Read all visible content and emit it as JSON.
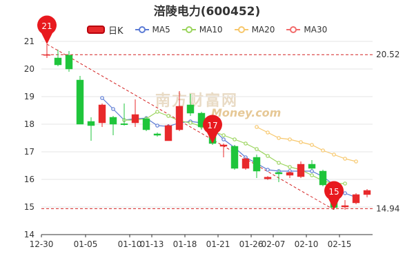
{
  "chart_data": {
    "type": "candlestick",
    "title": "涪陵电力(600452)",
    "legend": [
      "日K",
      "MA5",
      "MA10",
      "MA20",
      "MA30"
    ],
    "ylim": [
      14,
      21
    ],
    "yticks": [
      14,
      15,
      16,
      17,
      18,
      19,
      20,
      21
    ],
    "xticks": [
      "12-30",
      "01-05",
      "01-10",
      "01-13",
      "01-18",
      "01-21",
      "01-26",
      "02-07",
      "02-10",
      "02-15"
    ],
    "candles": [
      {
        "o": 20.52,
        "c": 20.52,
        "h": 20.9,
        "l": 20.4
      },
      {
        "o": 20.4,
        "c": 20.15,
        "h": 20.7,
        "l": 20.1
      },
      {
        "o": 20.5,
        "c": 20.0,
        "h": 20.65,
        "l": 19.9
      },
      {
        "o": 19.6,
        "c": 18.0,
        "h": 19.75,
        "l": 18.0
      },
      {
        "o": 18.1,
        "c": 17.95,
        "h": 18.25,
        "l": 17.4
      },
      {
        "o": 18.05,
        "c": 18.7,
        "h": 18.75,
        "l": 17.9
      },
      {
        "o": 18.25,
        "c": 18.0,
        "h": 18.3,
        "l": 17.6
      },
      {
        "o": 18.02,
        "c": 17.98,
        "h": 18.75,
        "l": 17.95
      },
      {
        "o": 18.05,
        "c": 18.35,
        "h": 18.9,
        "l": 17.9
      },
      {
        "o": 18.2,
        "c": 17.8,
        "h": 18.25,
        "l": 17.75
      },
      {
        "o": 17.65,
        "c": 17.6,
        "h": 17.7,
        "l": 17.55
      },
      {
        "o": 17.4,
        "c": 17.95,
        "h": 18.0,
        "l": 17.4
      },
      {
        "o": 17.8,
        "c": 18.65,
        "h": 19.2,
        "l": 17.75
      },
      {
        "o": 18.7,
        "c": 18.4,
        "h": 19.1,
        "l": 18.3
      },
      {
        "o": 18.4,
        "c": 17.9,
        "h": 18.45,
        "l": 17.8
      },
      {
        "o": 17.8,
        "c": 17.3,
        "h": 17.85,
        "l": 17.25
      },
      {
        "o": 17.2,
        "c": 17.25,
        "h": 17.3,
        "l": 16.8
      },
      {
        "o": 17.2,
        "c": 16.4,
        "h": 17.25,
        "l": 16.35
      },
      {
        "o": 16.4,
        "c": 16.75,
        "h": 16.8,
        "l": 16.35
      },
      {
        "o": 16.8,
        "c": 16.3,
        "h": 16.9,
        "l": 16.05
      },
      {
        "o": 16.02,
        "c": 16.08,
        "h": 16.12,
        "l": 15.98
      },
      {
        "o": 16.25,
        "c": 16.2,
        "h": 16.35,
        "l": 15.9
      },
      {
        "o": 16.15,
        "c": 16.25,
        "h": 16.3,
        "l": 16.05
      },
      {
        "o": 16.1,
        "c": 16.55,
        "h": 16.65,
        "l": 16.05
      },
      {
        "o": 16.55,
        "c": 16.4,
        "h": 16.7,
        "l": 16.35
      },
      {
        "o": 16.3,
        "c": 15.8,
        "h": 16.35,
        "l": 15.75
      },
      {
        "o": 15.3,
        "c": 14.98,
        "h": 15.35,
        "l": 14.9
      },
      {
        "o": 15.0,
        "c": 15.05,
        "h": 15.25,
        "l": 14.9
      },
      {
        "o": 15.15,
        "c": 15.45,
        "h": 15.5,
        "l": 15.1
      },
      {
        "o": 15.45,
        "c": 15.6,
        "h": 15.65,
        "l": 15.35
      }
    ],
    "series": [
      {
        "name": "MA5",
        "color": "#5b7bd5",
        "start_index": 5,
        "values": [
          18.95,
          18.55,
          18.15,
          18.2,
          18.22,
          17.95,
          17.92,
          18.05,
          18.1,
          18.05,
          17.85,
          17.45,
          17.15,
          16.8,
          16.58,
          16.35,
          16.3,
          16.3,
          16.3,
          16.3,
          16.1,
          15.8,
          15.5,
          15.35
        ]
      },
      {
        "name": "MA10",
        "color": "#9ad45c",
        "start_index": 7,
        "values": [
          18.15,
          18.15,
          18.2,
          18.45,
          18.3,
          18.12,
          18.05,
          17.92,
          17.75,
          17.6,
          17.45,
          17.3,
          17.1,
          16.85,
          16.6,
          16.45,
          16.35,
          16.15,
          15.95,
          15.85,
          15.85
        ]
      },
      {
        "name": "MA20",
        "color": "#f7c76b",
        "start_index": 19,
        "values": [
          17.9,
          17.7,
          17.5,
          17.45,
          17.35,
          17.25,
          17.05,
          16.9,
          16.75,
          16.65
        ]
      },
      {
        "name": "MA30",
        "color": "#f26b6b",
        "start_index": 30,
        "values": []
      }
    ],
    "reference_lines": [
      20.52,
      14.94
    ],
    "markers": [
      {
        "label": "21",
        "index": 0,
        "value": 20.9
      },
      {
        "label": "17",
        "index": 15,
        "value": 17.3
      },
      {
        "label": "15",
        "index": 26,
        "value": 14.9
      }
    ],
    "colors": {
      "up": "#e8292b",
      "down": "#1fc53b",
      "marker": "#e8191e"
    }
  },
  "watermark": {
    "text": "南方财富网",
    "sub": "Money.com"
  }
}
